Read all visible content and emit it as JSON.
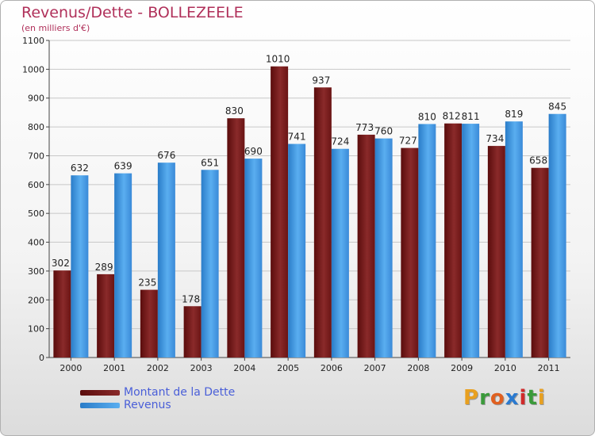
{
  "chart_data": {
    "type": "bar",
    "title": "Revenus/Dette - BOLLEZEELE",
    "subtitle": "(en milliers d'€)",
    "categories": [
      "2000",
      "2001",
      "2002",
      "2003",
      "2004",
      "2005",
      "2006",
      "2007",
      "2008",
      "2009",
      "2010",
      "2011"
    ],
    "series": [
      {
        "name": "Montant de la Dette",
        "color": "#7a1a1a",
        "values": [
          302,
          289,
          235,
          178,
          830,
          1010,
          937,
          773,
          727,
          812,
          734,
          658
        ]
      },
      {
        "name": "Revenus",
        "color": "#3d9ae6",
        "values": [
          632,
          639,
          676,
          651,
          690,
          741,
          724,
          760,
          810,
          811,
          819,
          845
        ]
      }
    ],
    "ylim": [
      0,
      1100
    ],
    "yticks": [
      0,
      100,
      200,
      300,
      400,
      500,
      600,
      700,
      800,
      900,
      1000,
      1100
    ],
    "grid": true,
    "legend": "bottom-left"
  },
  "logo": {
    "letters": [
      "P",
      "r",
      "o",
      "x",
      "i",
      "t",
      "i"
    ],
    "colors": [
      "#e8a020",
      "#3a9a3a",
      "#e06020",
      "#2a7ad0",
      "#d02a2a",
      "#3a9a3a",
      "#e8a020"
    ]
  }
}
